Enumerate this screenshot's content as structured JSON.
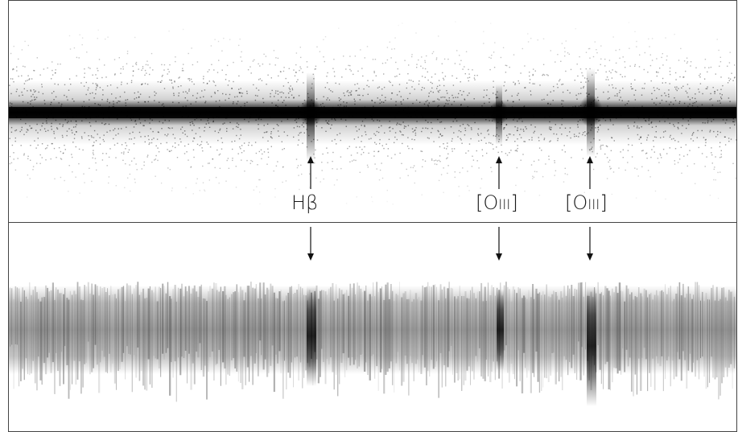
{
  "panels": {
    "top": {
      "description_kind": "2D spectrum (raw)"
    },
    "bottom": {
      "description_kind": "2D spectrum (processed)"
    }
  },
  "lines": [
    {
      "id": "hb",
      "symbol": "Hβ",
      "element": "",
      "ion": ""
    },
    {
      "id": "o1",
      "symbol": "",
      "element": "O",
      "ion": "III"
    },
    {
      "id": "o2",
      "symbol": "",
      "element": "O",
      "ion": "III"
    }
  ],
  "colors": {
    "frame": "#444444",
    "ink": "#111111",
    "background": "#ffffff"
  }
}
